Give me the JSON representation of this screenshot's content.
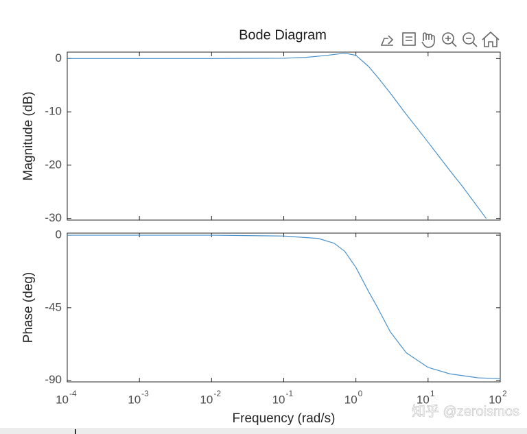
{
  "chart_data": [
    {
      "type": "line",
      "title": "Bode Diagram",
      "ylabel": "Magnitude (dB)",
      "xscale": "log",
      "x": [
        0.0001,
        0.001,
        0.01,
        0.1,
        0.2,
        0.4,
        0.7,
        1.0,
        1.5,
        2,
        3,
        5,
        7,
        10,
        20,
        30,
        64
      ],
      "series": [
        {
          "name": "Magnitude",
          "color": "#4a90c9",
          "values": [
            0,
            0,
            0,
            0.05,
            0.2,
            0.6,
            1.0,
            0.6,
            -1.5,
            -3.5,
            -6.5,
            -10.5,
            -13,
            -15.7,
            -21,
            -24,
            -30
          ]
        }
      ],
      "xlim": [
        0.0001,
        100
      ],
      "ylim": [
        -30.3,
        1.2
      ],
      "yticks": [
        0,
        -10,
        -20,
        -30
      ],
      "grid": false
    },
    {
      "type": "line",
      "ylabel": "Phase (deg)",
      "xlabel": "Frequency  (rad/s)",
      "xscale": "log",
      "x": [
        0.0001,
        0.001,
        0.01,
        0.1,
        0.3,
        0.5,
        0.7,
        1.0,
        1.5,
        2,
        3,
        5,
        10,
        20,
        50,
        100
      ],
      "series": [
        {
          "name": "Phase",
          "color": "#4a90c9",
          "values": [
            0,
            0,
            0,
            -0.5,
            -2,
            -5,
            -10,
            -20,
            -35,
            -45,
            -60,
            -73,
            -82,
            -86,
            -88.5,
            -89
          ]
        }
      ],
      "xlim": [
        0.0001,
        100
      ],
      "ylim": [
        -91,
        1.3
      ],
      "yticks": [
        0,
        -45,
        -90
      ],
      "xticks": [
        {
          "value": 0.0001,
          "label": "10",
          "sup": "-4"
        },
        {
          "value": 0.001,
          "label": "10",
          "sup": "-3"
        },
        {
          "value": 0.01,
          "label": "10",
          "sup": "-2"
        },
        {
          "value": 0.1,
          "label": "10",
          "sup": "-1"
        },
        {
          "value": 1,
          "label": "10",
          "sup": "0"
        },
        {
          "value": 10,
          "label": "10",
          "sup": "1"
        },
        {
          "value": 100,
          "label": "10",
          "sup": "2"
        }
      ],
      "grid": false
    }
  ],
  "watermark": "知乎 @zeroismos"
}
